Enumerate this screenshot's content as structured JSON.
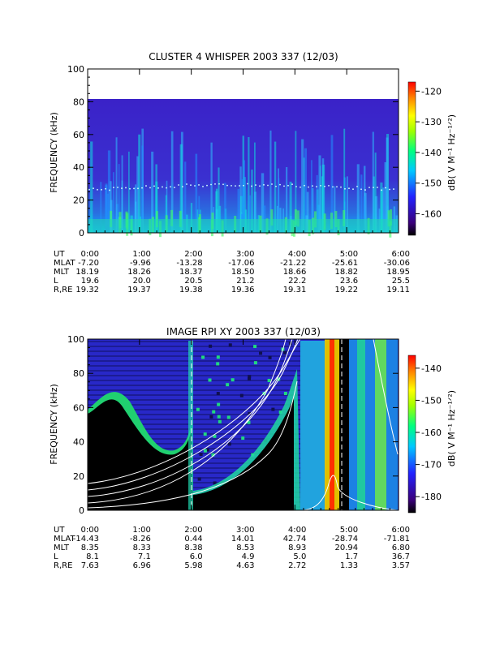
{
  "chart_data": [
    {
      "type": "heatmap",
      "title": "CLUSTER 4 WHISPER 2003 337 (12/03)",
      "ylabel": "FREQUENCY (kHz)",
      "ylim": [
        0,
        100
      ],
      "yticks": [
        "0",
        "20",
        "40",
        "60",
        "80",
        "100"
      ],
      "x": [
        "0:00",
        "1:00",
        "2:00",
        "3:00",
        "4:00",
        "5:00",
        "6:00"
      ],
      "colorbar": {
        "label": "dB( V M⁻¹ Hz⁻¹ᐟ²)",
        "ticks": [
          "-120",
          "-130",
          "-140",
          "-150",
          "-160"
        ],
        "range": [
          -167,
          -117
        ]
      },
      "data_top_khz": 80,
      "ephemeris": [
        {
          "label": "UT",
          "values": [
            "0:00",
            "1:00",
            "2:00",
            "3:00",
            "4:00",
            "5:00",
            "6:00"
          ]
        },
        {
          "label": "MLAT",
          "values": [
            "-7.20",
            "-9.96",
            "-13.28",
            "-17.06",
            "-21.22",
            "-25.61",
            "-30.06"
          ]
        },
        {
          "label": "MLT",
          "values": [
            "18.19",
            "18.26",
            "18.37",
            "18.50",
            "18.66",
            "18.82",
            "18.95"
          ]
        },
        {
          "label": "L",
          "values": [
            "19.6",
            "20.0",
            "20.5",
            "21.2",
            "22.2",
            "23.6",
            "25.5"
          ]
        },
        {
          "label": "R,RE",
          "values": [
            "19.32",
            "19.37",
            "19.38",
            "19.36",
            "19.31",
            "19.22",
            "19.11"
          ]
        }
      ]
    },
    {
      "type": "heatmap",
      "title": "IMAGE RPI XY 2003 337 (12/03)",
      "ylabel": "FREQUENCY (kHz)",
      "ylim": [
        0,
        100
      ],
      "yticks": [
        "0",
        "20",
        "40",
        "60",
        "80",
        "100"
      ],
      "x": [
        "0:00",
        "1:00",
        "2:00",
        "3:00",
        "4:00",
        "5:00",
        "6:00"
      ],
      "colorbar": {
        "label": "dB( V M⁻¹ Hz⁻¹ᐟ²)",
        "ticks": [
          "-140",
          "-150",
          "-160",
          "-170",
          "-180"
        ],
        "range": [
          -185,
          -136
        ]
      },
      "ephemeris": [
        {
          "label": "UT",
          "values": [
            "0:00",
            "1:00",
            "2:00",
            "3:00",
            "4:00",
            "5:00",
            "6:00"
          ]
        },
        {
          "label": "MLAT",
          "values": [
            "-14.43",
            "-8.26",
            "0.44",
            "14.01",
            "42.74",
            "-28.74",
            "-71.81"
          ]
        },
        {
          "label": "MLT",
          "values": [
            "8.35",
            "8.33",
            "8.38",
            "8.53",
            "8.93",
            "20.94",
            "6.80"
          ]
        },
        {
          "label": "L",
          "values": [
            "8.1",
            "7.1",
            "6.0",
            "4.9",
            "5.0",
            "1.7",
            "36.7"
          ]
        },
        {
          "label": "R,RE",
          "values": [
            "7.63",
            "6.96",
            "5.98",
            "4.63",
            "2.72",
            "1.33",
            "3.57"
          ]
        }
      ],
      "overlay_curves_color": "#ffffff"
    }
  ]
}
